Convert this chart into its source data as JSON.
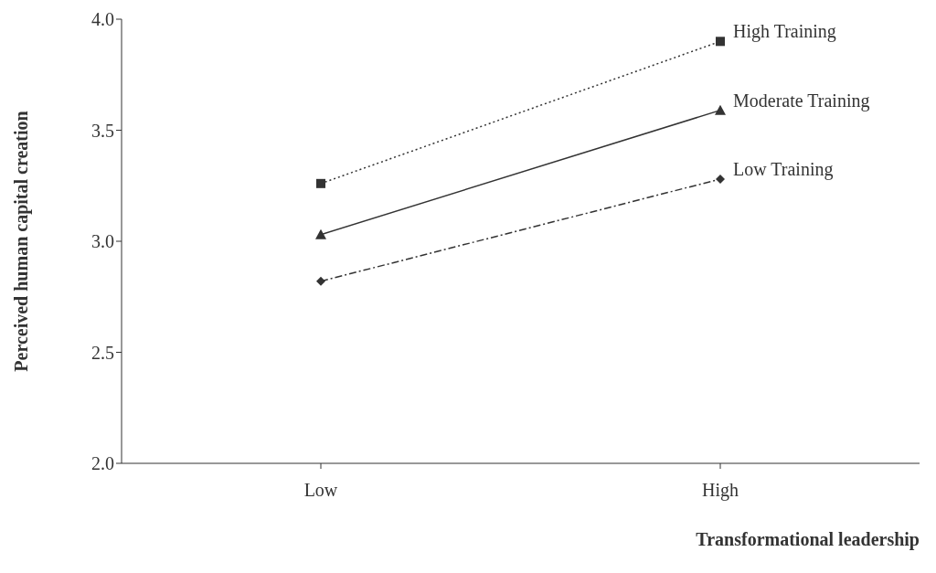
{
  "chart_data": {
    "type": "line",
    "xlabel": "Transformational leadership",
    "ylabel": "Perceived human capital creation",
    "categories": [
      "Low",
      "High"
    ],
    "series": [
      {
        "name": "High Training",
        "color": "#333333",
        "values": [
          3.26,
          3.9
        ],
        "marker": "square",
        "line_style": "dotted"
      },
      {
        "name": "Moderate Training",
        "color": "#333333",
        "values": [
          3.03,
          3.59
        ],
        "marker": "triangle",
        "line_style": "solid"
      },
      {
        "name": "Low Training",
        "color": "#333333",
        "values": [
          2.82,
          3.28
        ],
        "marker": "diamond",
        "line_style": "dashed"
      }
    ],
    "ylim": [
      2.0,
      4.0
    ],
    "yticks": [
      {
        "value": 2,
        "label": "2.0"
      },
      {
        "value": 2.5,
        "label": "2.5"
      },
      {
        "value": 3,
        "label": "3.0"
      },
      {
        "value": 3.5,
        "label": "3.5"
      },
      {
        "value": 4,
        "label": "4.0"
      }
    ],
    "grid": false,
    "legend": false
  }
}
